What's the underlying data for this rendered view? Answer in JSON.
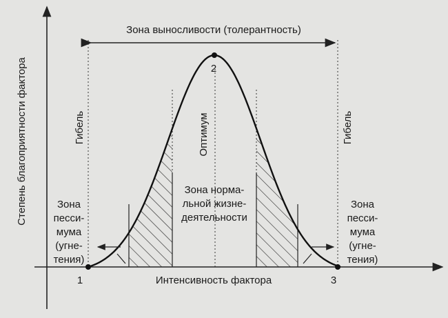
{
  "title": "Зона выносливости (толерантность)",
  "y_axis_label": "Степень благоприятности фактора",
  "x_axis_label": "Интенсивность фактора",
  "death_left": "Гибель",
  "death_right": "Гибель",
  "optimum": "Оптимум",
  "normal_zone": [
    "Зона норма-",
    "льной жизне-",
    "деятельности"
  ],
  "pessimum_left": [
    "Зона",
    "песси-",
    "мума",
    "(угне-",
    "тения)"
  ],
  "pessimum_right": [
    "Зона",
    "песси-",
    "мума",
    "(угне-",
    "тения)"
  ],
  "points": [
    "1",
    "2",
    "3"
  ]
}
